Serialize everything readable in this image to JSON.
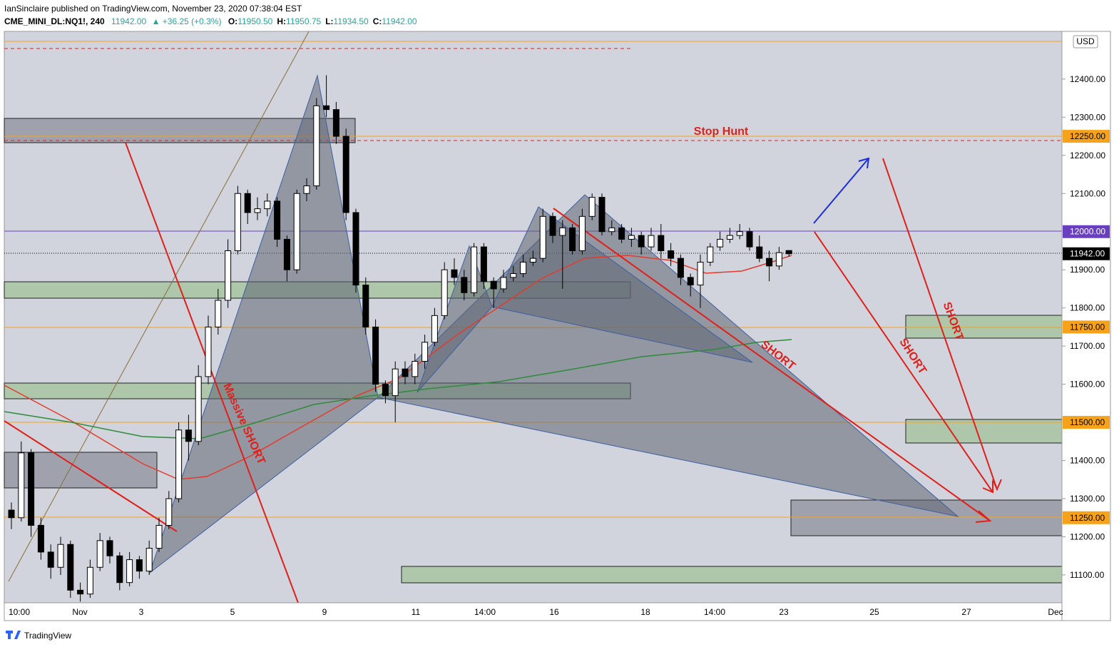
{
  "header": {
    "publisher": "IanSinclaire published on TradingView.com, November 23, 2020 07:38:04 EST",
    "symbol": "CME_MINI_DL:NQ1!, 240",
    "last": "11942.00",
    "change": "▲ +36.25 (+0.3%)",
    "ohlc": [
      {
        "label": "O:",
        "value": "11950.50"
      },
      {
        "label": "H:",
        "value": "11950.75"
      },
      {
        "label": "L:",
        "value": "11934.50"
      },
      {
        "label": "C:",
        "value": "11942.00"
      }
    ]
  },
  "footer": {
    "brand": "TradingView"
  },
  "chart_data": {
    "type": "candlestick",
    "categories": [
      "10:00",
      "Nov",
      "3",
      "5",
      "9",
      "11",
      "14:00",
      "16",
      "18",
      "14:00",
      "23",
      "25",
      "27",
      "Dec"
    ],
    "ylim": [
      11027,
      12525
    ],
    "yticks": [
      {
        "value": 11100,
        "label": "11100.00"
      },
      {
        "value": 11200,
        "label": "11200.00"
      },
      {
        "value": 11300,
        "label": "11300.00"
      },
      {
        "value": 11400,
        "label": "11400.00"
      },
      {
        "value": 11600,
        "label": "11600.00"
      },
      {
        "value": 11700,
        "label": "11700.00"
      },
      {
        "value": 11800,
        "label": "11800.00"
      },
      {
        "value": 11900,
        "label": "11900.00"
      },
      {
        "value": 12100,
        "label": "12100.00"
      },
      {
        "value": 12200,
        "label": "12200.00"
      },
      {
        "value": 12300,
        "label": "12300.00"
      },
      {
        "value": 12400,
        "label": "12400.00"
      }
    ],
    "currency": "USD",
    "price_labels": [
      {
        "value": 12250,
        "label": "12250.00",
        "color": "#f7a21b",
        "text_color": "#000000"
      },
      {
        "value": 12000,
        "label": "12000.00",
        "color": "#6a3fbf",
        "text_color": "#ffffff"
      },
      {
        "value": 11942,
        "label": "11942.00",
        "color": "#000000",
        "text_color": "#ffffff"
      },
      {
        "value": 11750,
        "label": "11750.00",
        "color": "#f7a21b",
        "text_color": "#000000"
      },
      {
        "value": 11500,
        "label": "11500.00",
        "color": "#f7a21b",
        "text_color": "#000000"
      },
      {
        "value": 11250,
        "label": "11250.00",
        "color": "#f7a21b",
        "text_color": "#000000"
      }
    ],
    "up_color": "#ffffff",
    "down_color": "#000000",
    "annotations": [
      "Stop Hunt",
      "SHORT",
      "SHORT",
      "SHORT",
      "Massive SHORT"
    ],
    "candles": [
      [
        11270,
        11290,
        11220,
        11250
      ],
      [
        11250,
        11450,
        11240,
        11420
      ],
      [
        11420,
        11430,
        11200,
        11230
      ],
      [
        11230,
        11250,
        11140,
        11160
      ],
      [
        11160,
        11180,
        11090,
        11120
      ],
      [
        11120,
        11200,
        11100,
        11180
      ],
      [
        11180,
        11190,
        11040,
        11060
      ],
      [
        11060,
        11080,
        11030,
        11050
      ],
      [
        11050,
        11140,
        11040,
        11120
      ],
      [
        11120,
        11210,
        11110,
        11190
      ],
      [
        11190,
        11200,
        11130,
        11150
      ],
      [
        11150,
        11160,
        11060,
        11080
      ],
      [
        11080,
        11160,
        11070,
        11140
      ],
      [
        11140,
        11150,
        11090,
        11110
      ],
      [
        11110,
        11190,
        11100,
        11170
      ],
      [
        11170,
        11250,
        11160,
        11230
      ],
      [
        11230,
        11320,
        11220,
        11300
      ],
      [
        11300,
        11500,
        11290,
        11480
      ],
      [
        11480,
        11520,
        11400,
        11450
      ],
      [
        11450,
        11650,
        11440,
        11620
      ],
      [
        11620,
        11780,
        11600,
        11750
      ],
      [
        11750,
        11850,
        11730,
        11820
      ],
      [
        11820,
        11980,
        11800,
        11950
      ],
      [
        11950,
        12120,
        11940,
        12100
      ],
      [
        12100,
        12110,
        12020,
        12050
      ],
      [
        12050,
        12090,
        12030,
        12060
      ],
      [
        12060,
        12100,
        12040,
        12080
      ],
      [
        12080,
        12090,
        11960,
        11980
      ],
      [
        11980,
        11990,
        11870,
        11900
      ],
      [
        11900,
        12110,
        11890,
        12100
      ],
      [
        12100,
        12140,
        12080,
        12120
      ],
      [
        12120,
        12350,
        12110,
        12330
      ],
      [
        12330,
        12410,
        12300,
        12320
      ],
      [
        12320,
        12340,
        12230,
        12250
      ],
      [
        12250,
        12270,
        12030,
        12050
      ],
      [
        12050,
        12060,
        11840,
        11860
      ],
      [
        11860,
        11880,
        11730,
        11750
      ],
      [
        11750,
        11770,
        11580,
        11600
      ],
      [
        11600,
        11610,
        11550,
        11570
      ],
      [
        11570,
        11660,
        11500,
        11640
      ],
      [
        11640,
        11660,
        11600,
        11620
      ],
      [
        11620,
        11680,
        11600,
        11660
      ],
      [
        11660,
        11730,
        11640,
        11710
      ],
      [
        11710,
        11800,
        11700,
        11780
      ],
      [
        11780,
        11920,
        11770,
        11900
      ],
      [
        11900,
        11930,
        11860,
        11880
      ],
      [
        11880,
        11900,
        11820,
        11840
      ],
      [
        11840,
        11970,
        11830,
        11960
      ],
      [
        11960,
        11970,
        11850,
        11870
      ],
      [
        11870,
        11880,
        11800,
        11850
      ],
      [
        11850,
        11900,
        11840,
        11880
      ],
      [
        11880,
        11910,
        11870,
        11890
      ],
      [
        11890,
        11940,
        11880,
        11920
      ],
      [
        11920,
        11950,
        11910,
        11930
      ],
      [
        11930,
        12060,
        11920,
        12040
      ],
      [
        12040,
        12050,
        11970,
        11990
      ],
      [
        11990,
        12030,
        11850,
        12010
      ],
      [
        12010,
        12020,
        11940,
        11950
      ],
      [
        11950,
        12060,
        11940,
        12040
      ],
      [
        12040,
        12100,
        12030,
        12090
      ],
      [
        12090,
        12100,
        11990,
        12000
      ],
      [
        12000,
        12030,
        11990,
        12010
      ],
      [
        12010,
        12020,
        11970,
        11980
      ],
      [
        11980,
        12010,
        11960,
        11990
      ],
      [
        11990,
        12000,
        11940,
        11960
      ],
      [
        11960,
        12010,
        11950,
        11990
      ],
      [
        11990,
        12020,
        11930,
        11950
      ],
      [
        11950,
        11970,
        11910,
        11930
      ],
      [
        11930,
        11940,
        11860,
        11880
      ],
      [
        11880,
        11890,
        11830,
        11860
      ],
      [
        11860,
        11940,
        11800,
        11920
      ],
      [
        11920,
        11970,
        11910,
        11960
      ],
      [
        11960,
        12000,
        11950,
        11980
      ],
      [
        11980,
        12010,
        11970,
        11990
      ],
      [
        11990,
        12020,
        11980,
        12000
      ],
      [
        12000,
        12010,
        11950,
        11960
      ],
      [
        11960,
        11990,
        11920,
        11930
      ],
      [
        11930,
        11950,
        11870,
        11910
      ],
      [
        11910,
        11960,
        11900,
        11945
      ],
      [
        11950.5,
        11950.75,
        11934.5,
        11942
      ]
    ]
  }
}
